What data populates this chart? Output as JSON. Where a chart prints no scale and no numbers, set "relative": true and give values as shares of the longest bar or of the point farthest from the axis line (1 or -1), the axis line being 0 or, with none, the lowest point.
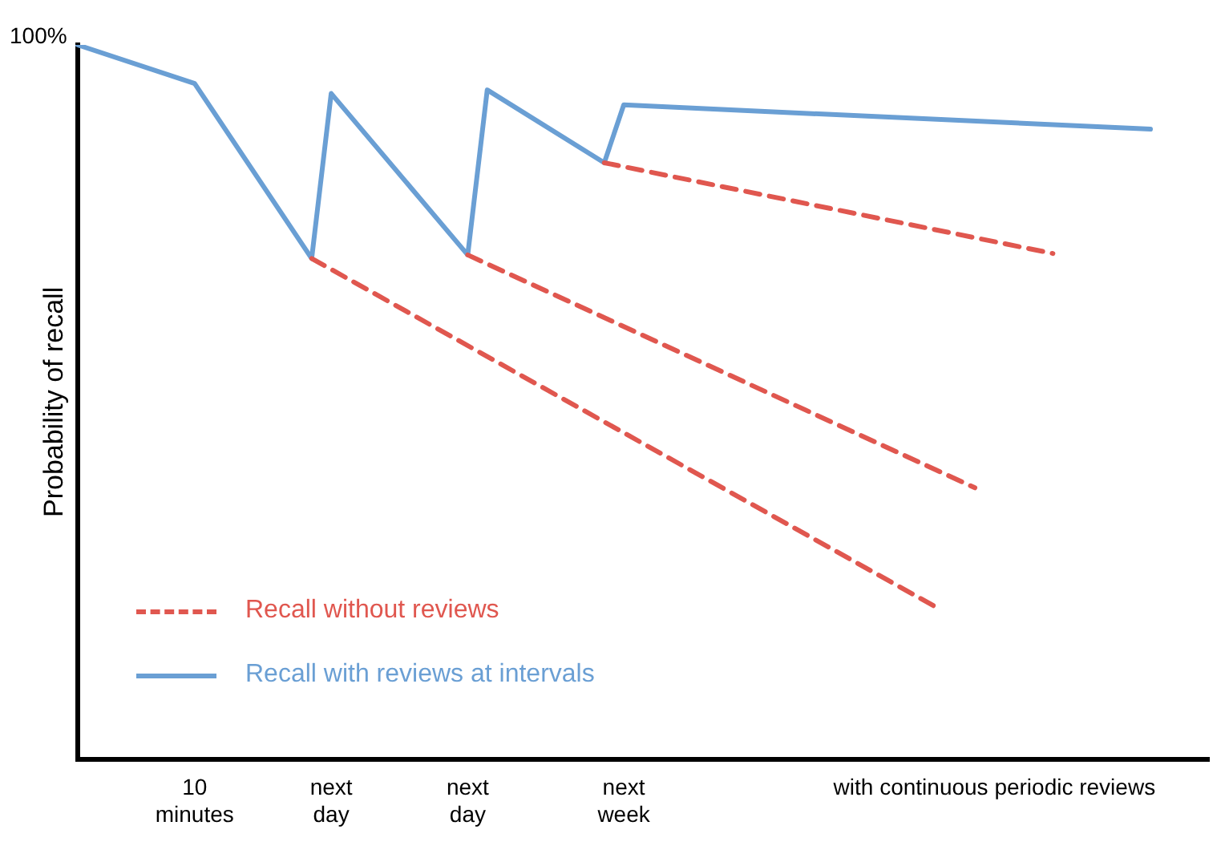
{
  "chart_data": {
    "type": "line",
    "relative": true,
    "ylabel": "Probability of recall",
    "annotations": [
      "100%"
    ],
    "categories": [
      null,
      null,
      null,
      null,
      null,
      null,
      "10\nminutes",
      null,
      null,
      null,
      null,
      null,
      null,
      "next\nday",
      null,
      null,
      null,
      null,
      null,
      null,
      "next\nday",
      null,
      null,
      null,
      null,
      null,
      null,
      null,
      "next\nweek",
      null,
      null,
      null,
      null,
      null,
      null,
      null,
      null,
      null,
      null,
      null,
      null,
      null,
      null,
      null,
      null,
      null,
      null,
      "with continuous periodic reviews",
      null,
      null,
      null,
      null,
      null,
      null,
      null,
      null,
      null,
      null,
      null
    ],
    "series": [
      {
        "name": "Recall without reviews",
        "color": "#e0574f",
        "line_style": "dashed",
        "values": [
          null,
          null,
          null,
          null,
          null,
          null,
          null,
          null,
          null,
          null,
          null,
          null,
          0.701,
          null,
          null,
          null,
          null,
          null,
          null,
          null,
          null,
          null,
          null,
          null,
          null,
          null,
          null,
          null,
          null,
          null,
          null,
          null,
          null,
          null,
          null,
          null,
          null,
          null,
          null,
          null,
          null,
          null,
          null,
          null,
          0.213,
          null,
          null,
          null,
          null,
          null,
          null,
          null,
          null,
          null,
          null,
          null,
          null,
          null,
          null
        ]
      },
      {
        "color": "#e0574f",
        "line_style": "dashed",
        "values": [
          null,
          null,
          null,
          null,
          null,
          null,
          null,
          null,
          null,
          null,
          null,
          null,
          null,
          null,
          null,
          null,
          null,
          null,
          null,
          null,
          0.706,
          null,
          null,
          null,
          null,
          null,
          null,
          null,
          null,
          null,
          null,
          null,
          null,
          null,
          null,
          null,
          null,
          null,
          null,
          null,
          null,
          null,
          null,
          null,
          null,
          null,
          0.38,
          null,
          null,
          null,
          null,
          null,
          null,
          null,
          null,
          null,
          null,
          null,
          null
        ]
      },
      {
        "color": "#e0574f",
        "line_style": "dashed",
        "values": [
          null,
          null,
          null,
          null,
          null,
          null,
          null,
          null,
          null,
          null,
          null,
          null,
          null,
          null,
          null,
          null,
          null,
          null,
          null,
          null,
          null,
          null,
          null,
          null,
          null,
          null,
          null,
          0.835,
          null,
          null,
          null,
          null,
          null,
          null,
          null,
          null,
          null,
          null,
          null,
          null,
          null,
          null,
          null,
          null,
          null,
          null,
          null,
          null,
          null,
          null,
          0.708,
          null,
          null,
          null,
          null,
          null,
          null,
          null,
          null
        ]
      },
      {
        "name": "Recall with reviews at intervals",
        "color": "#6a9fd4",
        "line_style": "solid",
        "values": [
          1,
          null,
          null,
          null,
          null,
          null,
          0.946,
          null,
          null,
          null,
          null,
          null,
          0.701,
          0.932,
          null,
          null,
          null,
          null,
          null,
          null,
          0.706,
          0.937,
          null,
          null,
          null,
          null,
          null,
          0.835,
          0.916,
          null,
          null,
          null,
          null,
          null,
          null,
          null,
          null,
          null,
          null,
          null,
          null,
          null,
          null,
          null,
          null,
          null,
          null,
          null,
          null,
          null,
          null,
          null,
          null,
          null,
          null,
          0.882,
          null,
          null,
          null
        ]
      }
    ],
    "marker": "none",
    "grid": false,
    "legend": "bottom left"
  }
}
